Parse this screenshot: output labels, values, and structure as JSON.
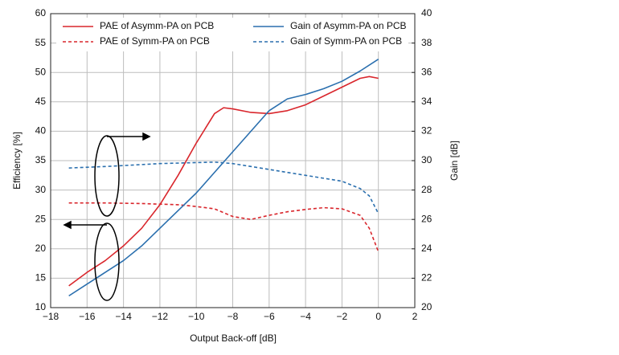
{
  "chart_data": {
    "type": "line",
    "xlabel": "Output Back-off [dB]",
    "ylabel": "Efficiency [%]",
    "y2label": "Gain [dB]",
    "xlim": [
      -18,
      2
    ],
    "xticks": [
      {
        "value": -18,
        "label": "−18"
      },
      {
        "value": -16,
        "label": "−16"
      },
      {
        "value": -14,
        "label": "−14"
      },
      {
        "value": -12,
        "label": "−12"
      },
      {
        "value": -10,
        "label": "−10"
      },
      {
        "value": -8,
        "label": "−8"
      },
      {
        "value": -6,
        "label": "−6"
      },
      {
        "value": -4,
        "label": "−4"
      },
      {
        "value": -2,
        "label": "−2"
      },
      0,
      2
    ],
    "ylim": [
      10,
      60
    ],
    "yticks": [
      10,
      15,
      20,
      25,
      30,
      35,
      40,
      45,
      50,
      55,
      60
    ],
    "y2lim": [
      20,
      40
    ],
    "y2ticks": [
      20,
      22,
      24,
      26,
      28,
      30,
      32,
      34,
      36,
      38,
      40
    ],
    "grid": true,
    "series": [
      {
        "name": "PAE of Asymm-PA on PCB",
        "color": "#d9262c",
        "style": "solid",
        "x": [
          -17,
          -16,
          -15,
          -14,
          -13,
          -12,
          -11,
          -10,
          -9,
          -8.5,
          -8,
          -7,
          -6,
          -5,
          -4,
          -3,
          -2,
          -1,
          -0.5,
          0
        ],
        "values": [
          13.7,
          16,
          18,
          20.5,
          23.5,
          27.5,
          32.5,
          38,
          43,
          44,
          43.8,
          43.2,
          43,
          43.5,
          44.5,
          46,
          47.5,
          49,
          49.3,
          49
        ]
      },
      {
        "name": "PAE of Symm-PA on PCB",
        "color": "#d9262c",
        "style": "dashed",
        "x": [
          -17,
          -15,
          -13,
          -11,
          -10,
          -9,
          -8,
          -7,
          -6,
          -5,
          -4,
          -3,
          -2,
          -1,
          -0.5,
          0
        ],
        "values": [
          27.8,
          27.8,
          27.7,
          27.5,
          27.2,
          26.8,
          25.5,
          25,
          25.7,
          26.3,
          26.7,
          27,
          26.8,
          25.7,
          23.5,
          19.5
        ]
      },
      {
        "name": "Gain of Asymm-PA on PCB",
        "color": "#2a6fae",
        "style": "solid",
        "axis": "y2",
        "x": [
          -17,
          -16,
          -15,
          -14,
          -13,
          -12,
          -11,
          -10,
          -9,
          -8,
          -7,
          -6,
          -5,
          -4,
          -3,
          -2,
          -1,
          0
        ],
        "values": [
          20.8,
          21.6,
          22.4,
          23.2,
          24.2,
          25.4,
          26.6,
          27.8,
          29.2,
          30.6,
          32,
          33.4,
          34.2,
          34.5,
          34.9,
          35.4,
          36.1,
          36.9
        ]
      },
      {
        "name": "Gain of Symm-PA on PCB",
        "color": "#2a6fae",
        "style": "dashed",
        "axis": "y2",
        "x": [
          -17,
          -15,
          -12,
          -9,
          -8,
          -6,
          -4,
          -2,
          -1,
          -0.5,
          0
        ],
        "values": [
          29.5,
          29.6,
          29.8,
          29.9,
          29.8,
          29.4,
          29,
          28.6,
          28.1,
          27.6,
          26.4
        ]
      }
    ]
  }
}
